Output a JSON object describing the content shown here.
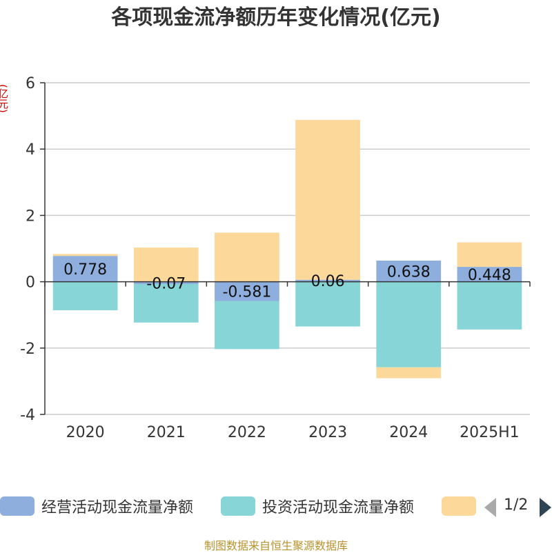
{
  "chart_data": {
    "type": "bar",
    "stacked": true,
    "title": "各项现金流净额历年变化情况(亿元)",
    "ylabel": "(亿元)",
    "categories": [
      "2020",
      "2021",
      "2022",
      "2023",
      "2024",
      "2025H1"
    ],
    "yticks": [
      "6",
      "4",
      "2",
      "0",
      "-2",
      "-4"
    ],
    "ylim": [
      -4,
      6
    ],
    "grid": true,
    "series": [
      {
        "name": "经营活动现金流量净额",
        "color": "#8eaede",
        "values": [
          0.778,
          -0.07,
          -0.581,
          0.06,
          0.638,
          0.448
        ]
      },
      {
        "name": "投资活动现金流量净额",
        "color": "#88d5d8",
        "values": [
          -0.86,
          -1.16,
          -1.45,
          -1.35,
          -2.58,
          -1.44
        ]
      },
      {
        "name": "",
        "color": "#fdd89b",
        "values": [
          0.06,
          1.03,
          1.48,
          4.82,
          -0.33,
          0.74
        ]
      }
    ],
    "data_labels": [
      "0.778",
      "-0.07",
      "-0.581",
      "0.06",
      "0.638",
      "0.448"
    ],
    "legend_position": "bottom"
  },
  "legend": {
    "pager": "1/2"
  },
  "source": "制图数据来自恒生聚源数据库"
}
